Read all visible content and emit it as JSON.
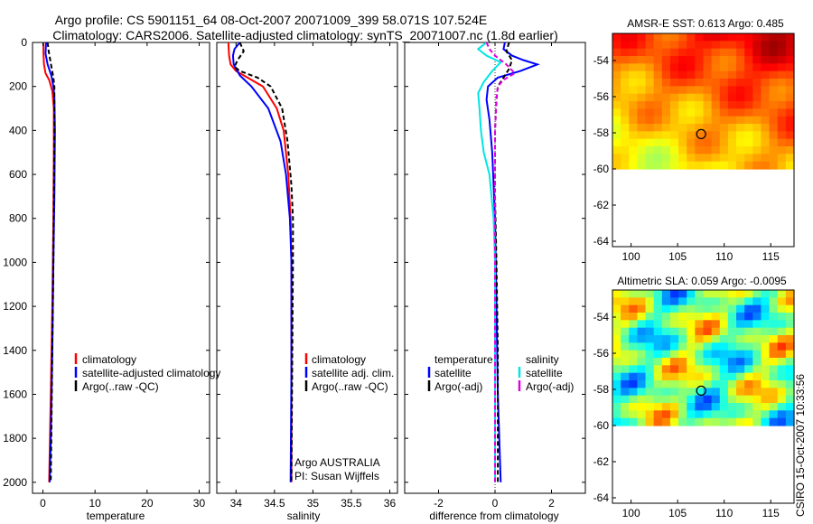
{
  "figure": {
    "title_line1": "Argo profile: CS 5901151_64 08-Oct-2007 20071009_399 58.071S 107.524E",
    "title_line2": "Climatology: CARS2006. Satellite-adjusted climatology: synTS_20071007.nc (1.8d earlier)",
    "vertical_label": "CSIRO 15-Oct-2007 10:33:56",
    "colors": {
      "red": "#ff0000",
      "blue": "#0000ff",
      "black": "#000000",
      "cyan": "#00e5e5",
      "magenta": "#e000e0"
    }
  },
  "chart_data": [
    {
      "id": "temperature",
      "type": "line",
      "xlabel": "temperature",
      "ylabel": "",
      "xlim": [
        -2,
        32
      ],
      "ylim": [
        2050,
        0
      ],
      "xticks": [
        0,
        10,
        20,
        30
      ],
      "xtick_labels": [
        "0",
        "10",
        "20",
        "30"
      ],
      "yticks": [
        0,
        200,
        400,
        600,
        800,
        1000,
        1200,
        1400,
        1600,
        1800,
        2000
      ],
      "ytick_labels": [
        "0",
        "200",
        "400",
        "600",
        "800",
        "1000",
        "1200",
        "1400",
        "1600",
        "1800",
        "2000"
      ],
      "legend": {
        "position": "lower-left",
        "entries": [
          "climatology",
          "satellite-adjusted climatology",
          "Argo(..raw -QC)"
        ]
      },
      "series": [
        {
          "name": "climatology",
          "color": "#ff0000",
          "style": "solid",
          "depth": [
            0,
            50,
            100,
            140,
            170,
            220,
            300,
            500,
            800,
            1200,
            1600,
            2000
          ],
          "values": [
            0.1,
            0.1,
            0.2,
            0.5,
            1.2,
            1.8,
            2.1,
            2.1,
            2.0,
            1.8,
            1.5,
            1.2
          ]
        },
        {
          "name": "satellite-adjusted climatology",
          "color": "#0000ff",
          "style": "solid",
          "depth": [
            0,
            50,
            100,
            150,
            200,
            250,
            400,
            700,
            1000,
            1400,
            1800,
            2000
          ],
          "values": [
            0.6,
            0.5,
            0.9,
            1.6,
            2.0,
            2.2,
            2.3,
            2.2,
            2.0,
            1.8,
            1.5,
            1.3
          ]
        },
        {
          "name": "Argo(..raw -QC)",
          "color": "#000000",
          "style": "dashed",
          "depth": [
            0,
            40,
            80,
            120,
            160,
            200,
            250,
            400,
            700,
            1000,
            1400,
            1800,
            2000
          ],
          "values": [
            0.9,
            1.1,
            1.4,
            1.7,
            2.0,
            2.2,
            2.2,
            2.2,
            2.1,
            2.0,
            1.8,
            1.6,
            1.5
          ]
        }
      ]
    },
    {
      "id": "salinity",
      "type": "line",
      "xlabel": "salinity",
      "ylabel": "",
      "xlim": [
        33.75,
        36.1
      ],
      "ylim": [
        2050,
        0
      ],
      "xticks": [
        34,
        34.5,
        35,
        35.5,
        36
      ],
      "xtick_labels": [
        "34",
        "34.5",
        "35",
        "35.5",
        "36"
      ],
      "legend": {
        "position": "lower-left",
        "entries": [
          "climatology",
          "satellite adj. clim.",
          "Argo(..raw -QC)"
        ]
      },
      "annotation": [
        "Argo AUSTRALIA",
        "PI: Susan Wijffels"
      ],
      "series": [
        {
          "name": "climatology",
          "color": "#ff0000",
          "style": "solid",
          "depth": [
            0,
            60,
            100,
            130,
            160,
            200,
            300,
            400,
            600,
            800,
            1000,
            1500,
            2000
          ],
          "values": [
            33.9,
            33.91,
            33.93,
            34.0,
            34.15,
            34.35,
            34.53,
            34.62,
            34.68,
            34.71,
            34.72,
            34.72,
            34.72
          ]
        },
        {
          "name": "satellite adj. clim.",
          "color": "#0000ff",
          "style": "solid",
          "depth": [
            0,
            30,
            60,
            100,
            150,
            200,
            300,
            450,
            600,
            800,
            1000,
            1500,
            2000
          ],
          "values": [
            34.05,
            33.98,
            33.96,
            33.97,
            34.05,
            34.2,
            34.42,
            34.58,
            34.65,
            34.7,
            34.72,
            34.72,
            34.71
          ]
        },
        {
          "name": "Argo(..raw -QC)",
          "color": "#000000",
          "style": "dashed",
          "depth": [
            0,
            40,
            80,
            110,
            130,
            160,
            200,
            300,
            450,
            650,
            800,
            1000,
            1500,
            2000
          ],
          "values": [
            34.05,
            34.1,
            34.02,
            33.98,
            34.05,
            34.28,
            34.45,
            34.6,
            34.67,
            34.72,
            34.74,
            34.74,
            34.73,
            34.72
          ]
        }
      ]
    },
    {
      "id": "difference",
      "type": "line",
      "xlabel": "difference from climatology",
      "ylabel": "",
      "xlim": [
        -3.2,
        3.2
      ],
      "ylim": [
        2050,
        0
      ],
      "xticks": [
        -2,
        0,
        2
      ],
      "xtick_labels": [
        "-2",
        "0",
        "2"
      ],
      "legend": {
        "position": "lower-left",
        "headers": [
          "temperature",
          "salinity"
        ],
        "entries": [
          "satellite",
          "Argo(-adj)",
          "satellite",
          "Argo(-adj)"
        ]
      },
      "series": [
        {
          "name": "temperature satellite",
          "color": "#0000ff",
          "style": "solid",
          "depth": [
            0,
            30,
            60,
            80,
            100,
            130,
            160,
            200,
            260,
            350,
            500,
            800,
            1200,
            1600,
            2000
          ],
          "values": [
            0.35,
            0.3,
            0.6,
            1.0,
            1.5,
            0.9,
            0.1,
            -0.25,
            -0.3,
            -0.2,
            -0.1,
            0.0,
            0.05,
            0.1,
            0.2
          ]
        },
        {
          "name": "temperature Argo(-adj)",
          "color": "#000000",
          "style": "dashed",
          "depth": [
            0,
            40,
            80,
            120,
            160,
            200,
            260,
            400,
            700,
            1000,
            1400,
            1800,
            2000
          ],
          "values": [
            0.5,
            0.4,
            0.6,
            0.5,
            0.3,
            0.1,
            0.05,
            0.0,
            0.0,
            0.05,
            0.1,
            0.1,
            0.1
          ]
        },
        {
          "name": "salinity satellite",
          "color": "#00e5e5",
          "style": "solid",
          "depth": [
            0,
            30,
            60,
            90,
            130,
            180,
            230,
            300,
            400,
            500,
            600,
            800,
            1000,
            1400,
            1800,
            2000
          ],
          "values": [
            -0.3,
            -0.6,
            -0.3,
            0.2,
            -0.1,
            -0.4,
            -0.6,
            -0.55,
            -0.5,
            -0.4,
            -0.2,
            -0.05,
            0.0,
            0.0,
            0.0,
            0.0
          ]
        },
        {
          "name": "salinity Argo(-adj)",
          "color": "#e000e0",
          "style": "dashed",
          "depth": [
            0,
            30,
            60,
            100,
            140,
            170,
            200,
            250,
            400,
            700,
            1000,
            1500,
            2000
          ],
          "values": [
            -0.3,
            -0.2,
            0.0,
            0.4,
            0.7,
            0.3,
            0.1,
            0.05,
            0.0,
            0.0,
            0.0,
            0.0,
            0.0
          ]
        }
      ]
    },
    {
      "id": "amsre-sst",
      "type": "heatmap",
      "title": "AMSR-E SST: 0.613 Argo: 0.485",
      "xlim": [
        98,
        117.5
      ],
      "ylim": [
        -64.3,
        -52.5
      ],
      "xticks": [
        100,
        105,
        110,
        115
      ],
      "xtick_labels": [
        "100",
        "105",
        "110",
        "115"
      ],
      "yticks": [
        -54,
        -56,
        -58,
        -60,
        -62,
        -64
      ],
      "ytick_labels": [
        "-54",
        "-56",
        "-58",
        "-60",
        "-62",
        "-64"
      ],
      "data_lat_min": -60,
      "profile_location": {
        "lon": 107.524,
        "lat": -58.071
      }
    },
    {
      "id": "altimetric-sla",
      "type": "heatmap",
      "title": "Altimetric SLA: 0.059 Argo: -0.0095",
      "xlim": [
        98,
        117.5
      ],
      "ylim": [
        -64.3,
        -52.5
      ],
      "xticks": [
        100,
        105,
        110,
        115
      ],
      "xtick_labels": [
        "100",
        "105",
        "110",
        "115"
      ],
      "yticks": [
        -54,
        -56,
        -58,
        -60,
        -62,
        -64
      ],
      "ytick_labels": [
        "-54",
        "-56",
        "-58",
        "-60",
        "-62",
        "-64"
      ],
      "data_lat_min": -60,
      "profile_location": {
        "lon": 107.524,
        "lat": -58.071
      }
    }
  ]
}
